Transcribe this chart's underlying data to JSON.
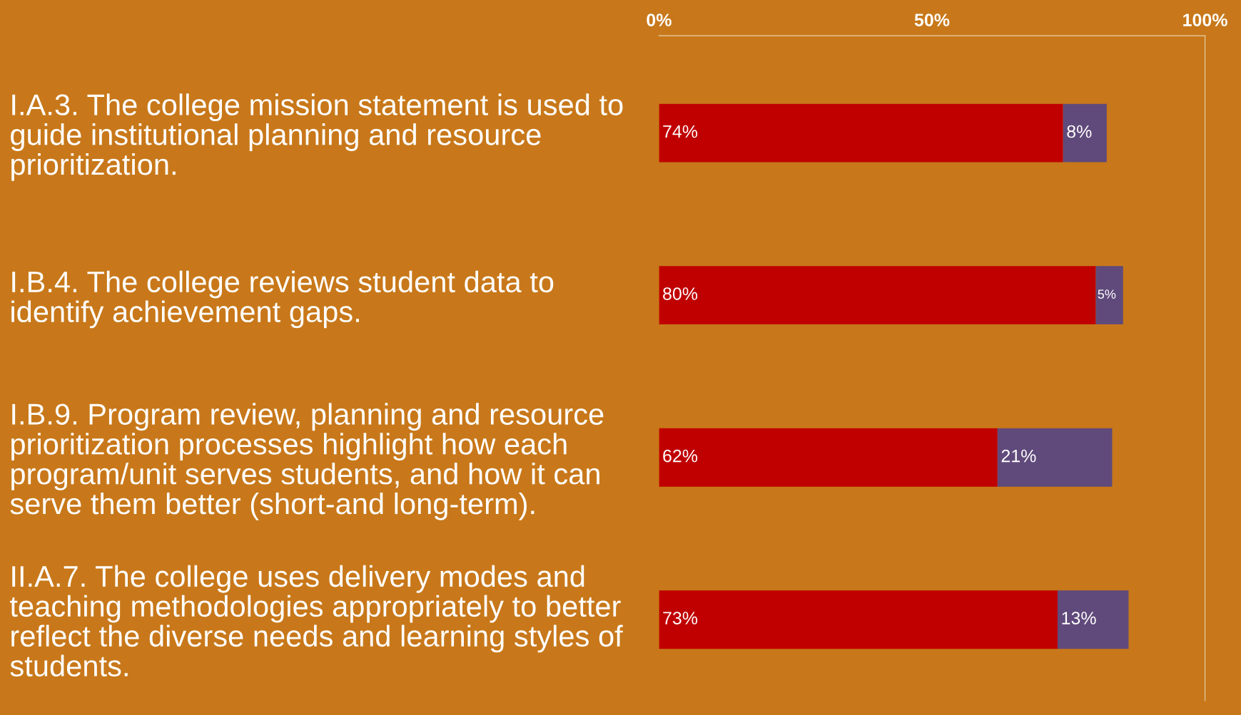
{
  "chart_data": {
    "type": "bar",
    "orientation": "horizontal",
    "stacked": true,
    "categories": [
      "I.A.3. The college mission statement is used to\nguide institutional planning and resource\nprioritization.",
      "I.B.4. The college reviews student data to\nidentify achievement gaps.",
      "I.B.9. Program review, planning and resource\nprioritization processes highlight how each\nprogram/unit serves students, and how it can\nserve them better (short-and long-term).",
      "II.A.7. The college uses delivery modes and\nteaching methodologies appropriately to better\nreflect the diverse needs and learning styles of\nstudents."
    ],
    "series": [
      {
        "color": "#c00000",
        "values": [
          74,
          80,
          62,
          73
        ],
        "value_labels": [
          "74%",
          "80%",
          "62%",
          "73%"
        ]
      },
      {
        "color": "#604a7b",
        "values": [
          8,
          5,
          21,
          13
        ],
        "value_labels": [
          "8%",
          "5%",
          "21%",
          "13%"
        ]
      }
    ],
    "xlim": [
      0,
      100
    ],
    "xticks": [
      {
        "value": 0,
        "label": "0%"
      },
      {
        "value": 50,
        "label": "50%"
      },
      {
        "value": 100,
        "label": "100%"
      }
    ],
    "grid": false,
    "legend": false
  }
}
